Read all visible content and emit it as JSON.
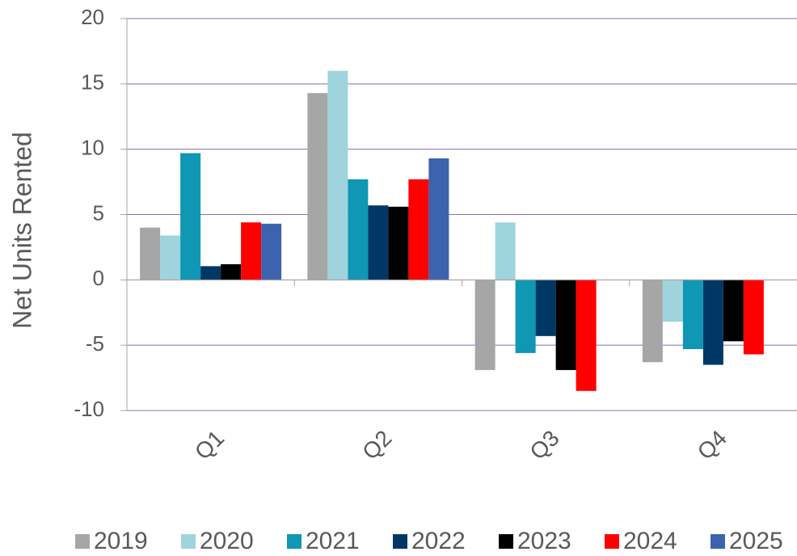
{
  "chart_data": {
    "type": "bar",
    "y_label": "Net Units Rented",
    "categories": [
      "Q1",
      "Q2",
      "Q3",
      "Q4"
    ],
    "series": [
      {
        "name": "2019",
        "color": "#a6a6a6",
        "values": [
          4.0,
          14.3,
          -6.9,
          -6.3
        ]
      },
      {
        "name": "2020",
        "color": "#9fd4dc",
        "values": [
          3.4,
          16.0,
          4.4,
          -3.2
        ]
      },
      {
        "name": "2021",
        "color": "#0f97b4",
        "values": [
          9.7,
          7.7,
          -5.6,
          -5.3
        ]
      },
      {
        "name": "2022",
        "color": "#003865",
        "values": [
          1.05,
          5.7,
          -4.3,
          -6.5
        ]
      },
      {
        "name": "2023",
        "color": "#000000",
        "values": [
          1.2,
          5.6,
          -6.9,
          -4.7
        ]
      },
      {
        "name": "2024",
        "color": "#ff0000",
        "values": [
          4.4,
          7.7,
          -8.5,
          -5.7
        ]
      },
      {
        "name": "2025",
        "color": "#3c63ad",
        "values": [
          4.3,
          9.3,
          null,
          null
        ]
      }
    ],
    "ylim": [
      -10,
      20
    ],
    "yticks": [
      20,
      15,
      10,
      5,
      0,
      -5,
      -10
    ],
    "grid": true,
    "legend": "bottom"
  }
}
